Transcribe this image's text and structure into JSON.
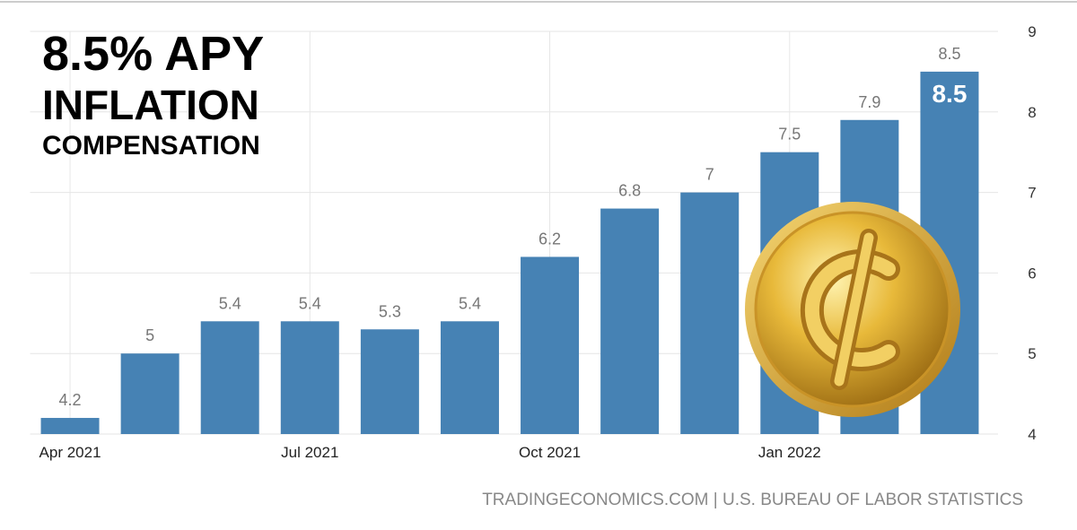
{
  "chart_data": {
    "type": "bar",
    "title_lines": [
      "8.5% APY",
      "INFLATION",
      "COMPENSATION"
    ],
    "categories": [
      "Apr 2021",
      null,
      null,
      "Jul 2021",
      null,
      null,
      "Oct 2021",
      null,
      null,
      "Jan 2022",
      null,
      null
    ],
    "values": [
      4.2,
      5,
      5.4,
      5.4,
      5.3,
      5.4,
      6.2,
      6.8,
      7,
      7.5,
      7.9,
      8.5
    ],
    "color": "#4682b4",
    "ylim": [
      4,
      9
    ],
    "yticks": [
      4,
      5,
      6,
      7,
      8,
      9
    ],
    "y_axis_side": "right",
    "grid": true,
    "source": "TRADINGECONOMICS.COM | U.S. BUREAU OF LABOR STATISTICS"
  }
}
